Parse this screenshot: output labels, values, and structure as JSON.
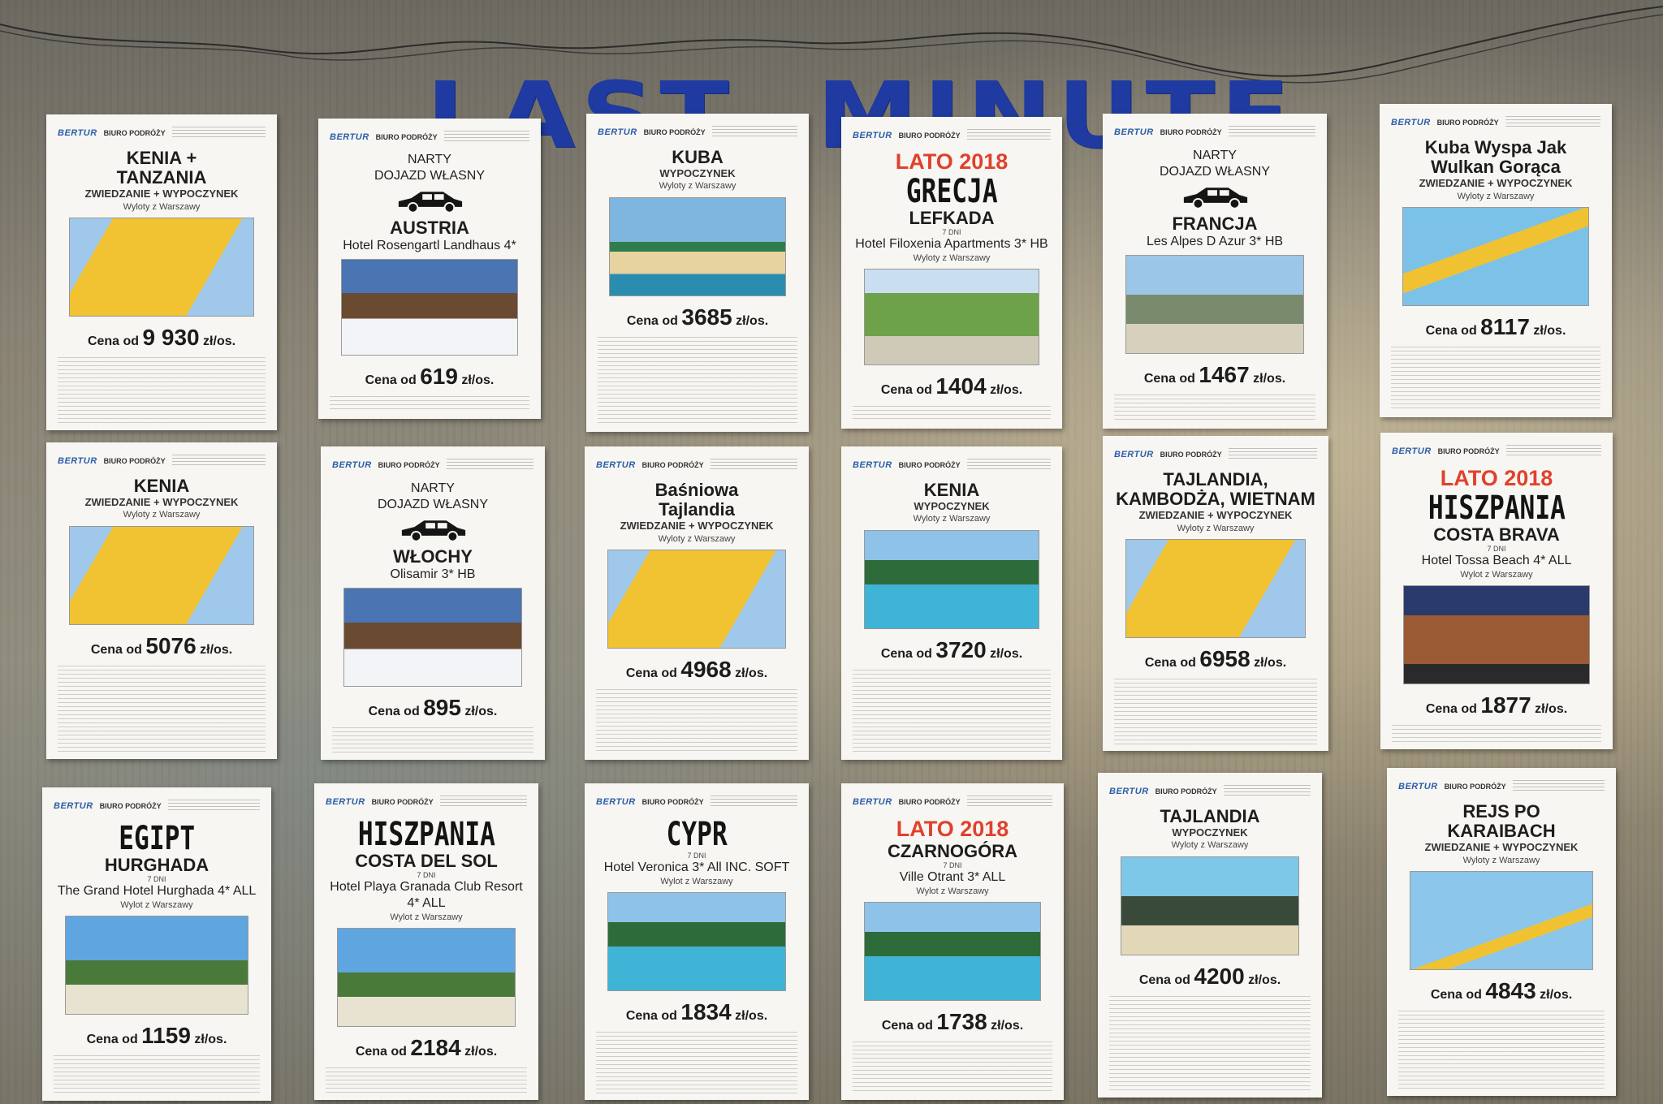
{
  "headline": "LAST  MINUTE",
  "agency": {
    "logo": "BERTUR",
    "name": "BIURO PODRÓŻY"
  },
  "posters": [
    {
      "lines": [
        "KENIA +",
        "TANZANIA"
      ],
      "subtitle": "ZWIEDZANIE + WYPOCZYNEK",
      "departure": "Wyloty z Warszawy",
      "image": "map-kenya-tanzania",
      "price_label": "Cena od",
      "price": "9 930",
      "price_unit": "zł/os."
    },
    {
      "top": [
        "NARTY",
        "DOJAZD WŁASNY"
      ],
      "icon": "car-icon",
      "lines": [
        "AUSTRIA"
      ],
      "hotel": "Hotel Rosengartl Landhaus 4*",
      "image": "snow-chalet",
      "price_label": "Cena od",
      "price": "619",
      "price_unit": "zł/os."
    },
    {
      "lines": [
        "KUBA"
      ],
      "subtitle": "WYPOCZYNEK",
      "departure": "Wyloty z Warszawy",
      "image": "beach-vintage-car",
      "price_label": "Cena od",
      "price": "3685",
      "price_unit": "zł/os."
    },
    {
      "season": "LATO 2018",
      "big": "GRECJA",
      "place": "LEFKADA",
      "days": "7 DNI",
      "hotel": "Hotel Filoxenia Apartments 3* HB",
      "departure": "Wyloty z Warszawy",
      "image": "garden-resort",
      "price_label": "Cena od",
      "price": "1404",
      "price_unit": "zł/os."
    },
    {
      "top": [
        "NARTY",
        "DOJAZD WŁASNY"
      ],
      "icon": "car-icon",
      "lines": [
        "FRANCJA"
      ],
      "hotel": "Les Alpes D Azur 3*  HB",
      "image": "alpine-village",
      "price_label": "Cena od",
      "price": "1467",
      "price_unit": "zł/os."
    },
    {
      "lines": [
        "Kuba Wyspa Jak",
        "Wulkan Gorąca"
      ],
      "subtitle": "ZWIEDZANIE + WYPOCZYNEK",
      "departure": "Wyloty z Warszawy",
      "image": "map-cuba",
      "price_label": "Cena od",
      "price": "8117",
      "price_unit": "zł/os."
    },
    {
      "lines": [
        "KENIA"
      ],
      "subtitle": "ZWIEDZANIE + WYPOCZYNEK",
      "departure": "Wyloty z Warszawy",
      "image": "map-kenya",
      "price_label": "Cena od",
      "price": "5076",
      "price_unit": "zł/os."
    },
    {
      "top": [
        "NARTY",
        "DOJAZD WŁASNY"
      ],
      "icon": "car-icon",
      "lines": [
        "WŁOCHY"
      ],
      "hotel": "Olisamir 3*  HB",
      "image": "snow-hotel",
      "price_label": "Cena od",
      "price": "895",
      "price_unit": "zł/os."
    },
    {
      "lines": [
        "Baśniowa",
        "Tajlandia"
      ],
      "subtitle": "ZWIEDZANIE + WYPOCZYNEK",
      "departure": "Wyloty z Warszawy",
      "image": "map-thailand",
      "price_label": "Cena od",
      "price": "4968",
      "price_unit": "zł/os."
    },
    {
      "lines": [
        "KENIA"
      ],
      "subtitle": "WYPOCZYNEK",
      "departure": "Wyloty z Warszawy",
      "image": "palm-pool",
      "price_label": "Cena od",
      "price": "3720",
      "price_unit": "zł/os."
    },
    {
      "lines": [
        "TAJLANDIA,",
        "KAMBODŻA, WIETNAM"
      ],
      "subtitle": "ZWIEDZANIE + WYPOCZYNEK",
      "departure": "Wyloty z Warszawy",
      "image": "map-indochina",
      "price_label": "Cena od",
      "price": "6958",
      "price_unit": "zł/os."
    },
    {
      "season": "LATO 2018",
      "big": "HISZPANIA",
      "place": "COSTA BRAVA",
      "days": "7 DNI",
      "hotel": "Hotel Tossa Beach 4* ALL",
      "departure": "Wylot z Warszawy",
      "image": "hotel-night",
      "price_label": "Cena od",
      "price": "1877",
      "price_unit": "zł/os."
    },
    {
      "big": "EGIPT",
      "place": "HURGHADA",
      "days": "7 DNI",
      "hotel": "The Grand Hotel Hurghada 4* ALL",
      "departure": "Wylot z Warszawy",
      "image": "egypt-resort",
      "price_label": "Cena od",
      "price": "1159",
      "price_unit": "zł/os."
    },
    {
      "big": "HISZPANIA",
      "place": "COSTA DEL SOL",
      "days": "7 DNI",
      "hotel": "Hotel Playa Granada Club Resort 4* ALL",
      "departure": "Wylot z Warszawy",
      "image": "spain-resort",
      "price_label": "Cena od",
      "price": "2184",
      "price_unit": "zł/os."
    },
    {
      "big": "CYPR",
      "days": "7 DNI",
      "hotel": "Hotel Veronica 3* All INC. SOFT",
      "departure": "Wylot z Warszawy",
      "image": "cyprus-pool",
      "price_label": "Cena od",
      "price": "1834",
      "price_unit": "zł/os."
    },
    {
      "season": "LATO 2018",
      "lines": [
        "CZARNOGÓRA"
      ],
      "days": "7 DNI",
      "hotel": "Ville Otrant 3* ALL",
      "departure": "Wylot z Warszawy",
      "image": "montenegro-pool",
      "price_label": "Cena od",
      "price": "1738",
      "price_unit": "zł/os."
    },
    {
      "lines": [
        "TAJLANDIA"
      ],
      "subtitle": "WYPOCZYNEK",
      "departure": "Wyloty z Warszawy",
      "image": "thai-rock-sea",
      "price_label": "Cena od",
      "price": "4200",
      "price_unit": "zł/os."
    },
    {
      "lines": [
        "REJS PO",
        "KARAIBACH"
      ],
      "subtitle": "ZWIEDZANIE + WYPOCZYNEK",
      "departure": "Wyloty z Warszawy",
      "image": "map-caribbean-route",
      "price_label": "Cena od",
      "price": "4843",
      "price_unit": "zł/os."
    }
  ]
}
